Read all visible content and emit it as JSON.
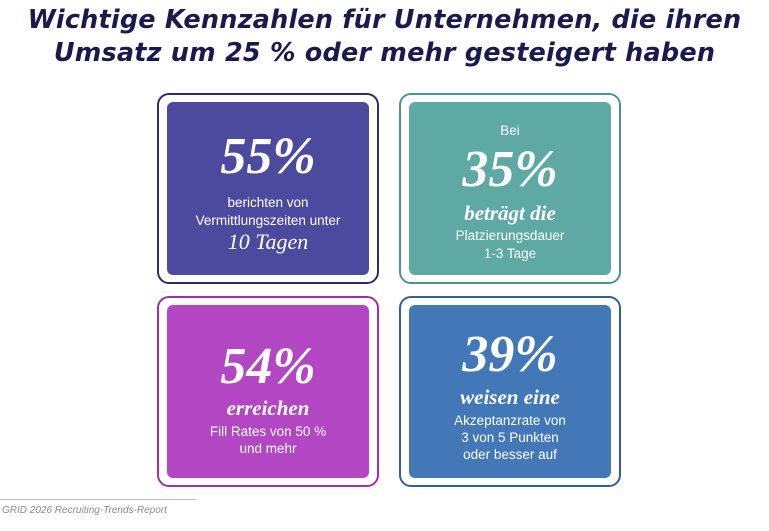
{
  "title": {
    "line1": "Wichtige Kennzahlen für Unternehmen, die ihren",
    "line2": "Umsatz um 25 % oder mehr gesteigert haben"
  },
  "cards": {
    "c1": {
      "big": "55%",
      "line1": "berichten von",
      "line2": "Vermittlungszeiten unter",
      "line3": "10 Tagen"
    },
    "c2": {
      "pre": "Bei",
      "big": "35%",
      "serif": "beträgt die",
      "line1": "Platzierungsdauer",
      "line2": "1-3 Tage"
    },
    "c3": {
      "big": "54%",
      "serif": "erreichen",
      "line1": "Fill Rates von 50 %",
      "line2": "und mehr"
    },
    "c4": {
      "big": "39%",
      "serif": "weisen eine",
      "line1": "Akzeptanzrate von",
      "line2": "3 von 5 Punkten",
      "line3": "oder besser auf"
    }
  },
  "colors": {
    "title": "#1b1a4e",
    "card1": "#4b4a9e",
    "card1_border": "#2d2c6f",
    "card2": "#5ea9a4",
    "card2_border": "#4a9590",
    "card3": "#b246c3",
    "card3_border": "#9b31aa",
    "card4": "#4277b8",
    "card4_border": "#2f5f9c"
  },
  "footer": "GRID 2026 Recruiting-Trends-Report"
}
